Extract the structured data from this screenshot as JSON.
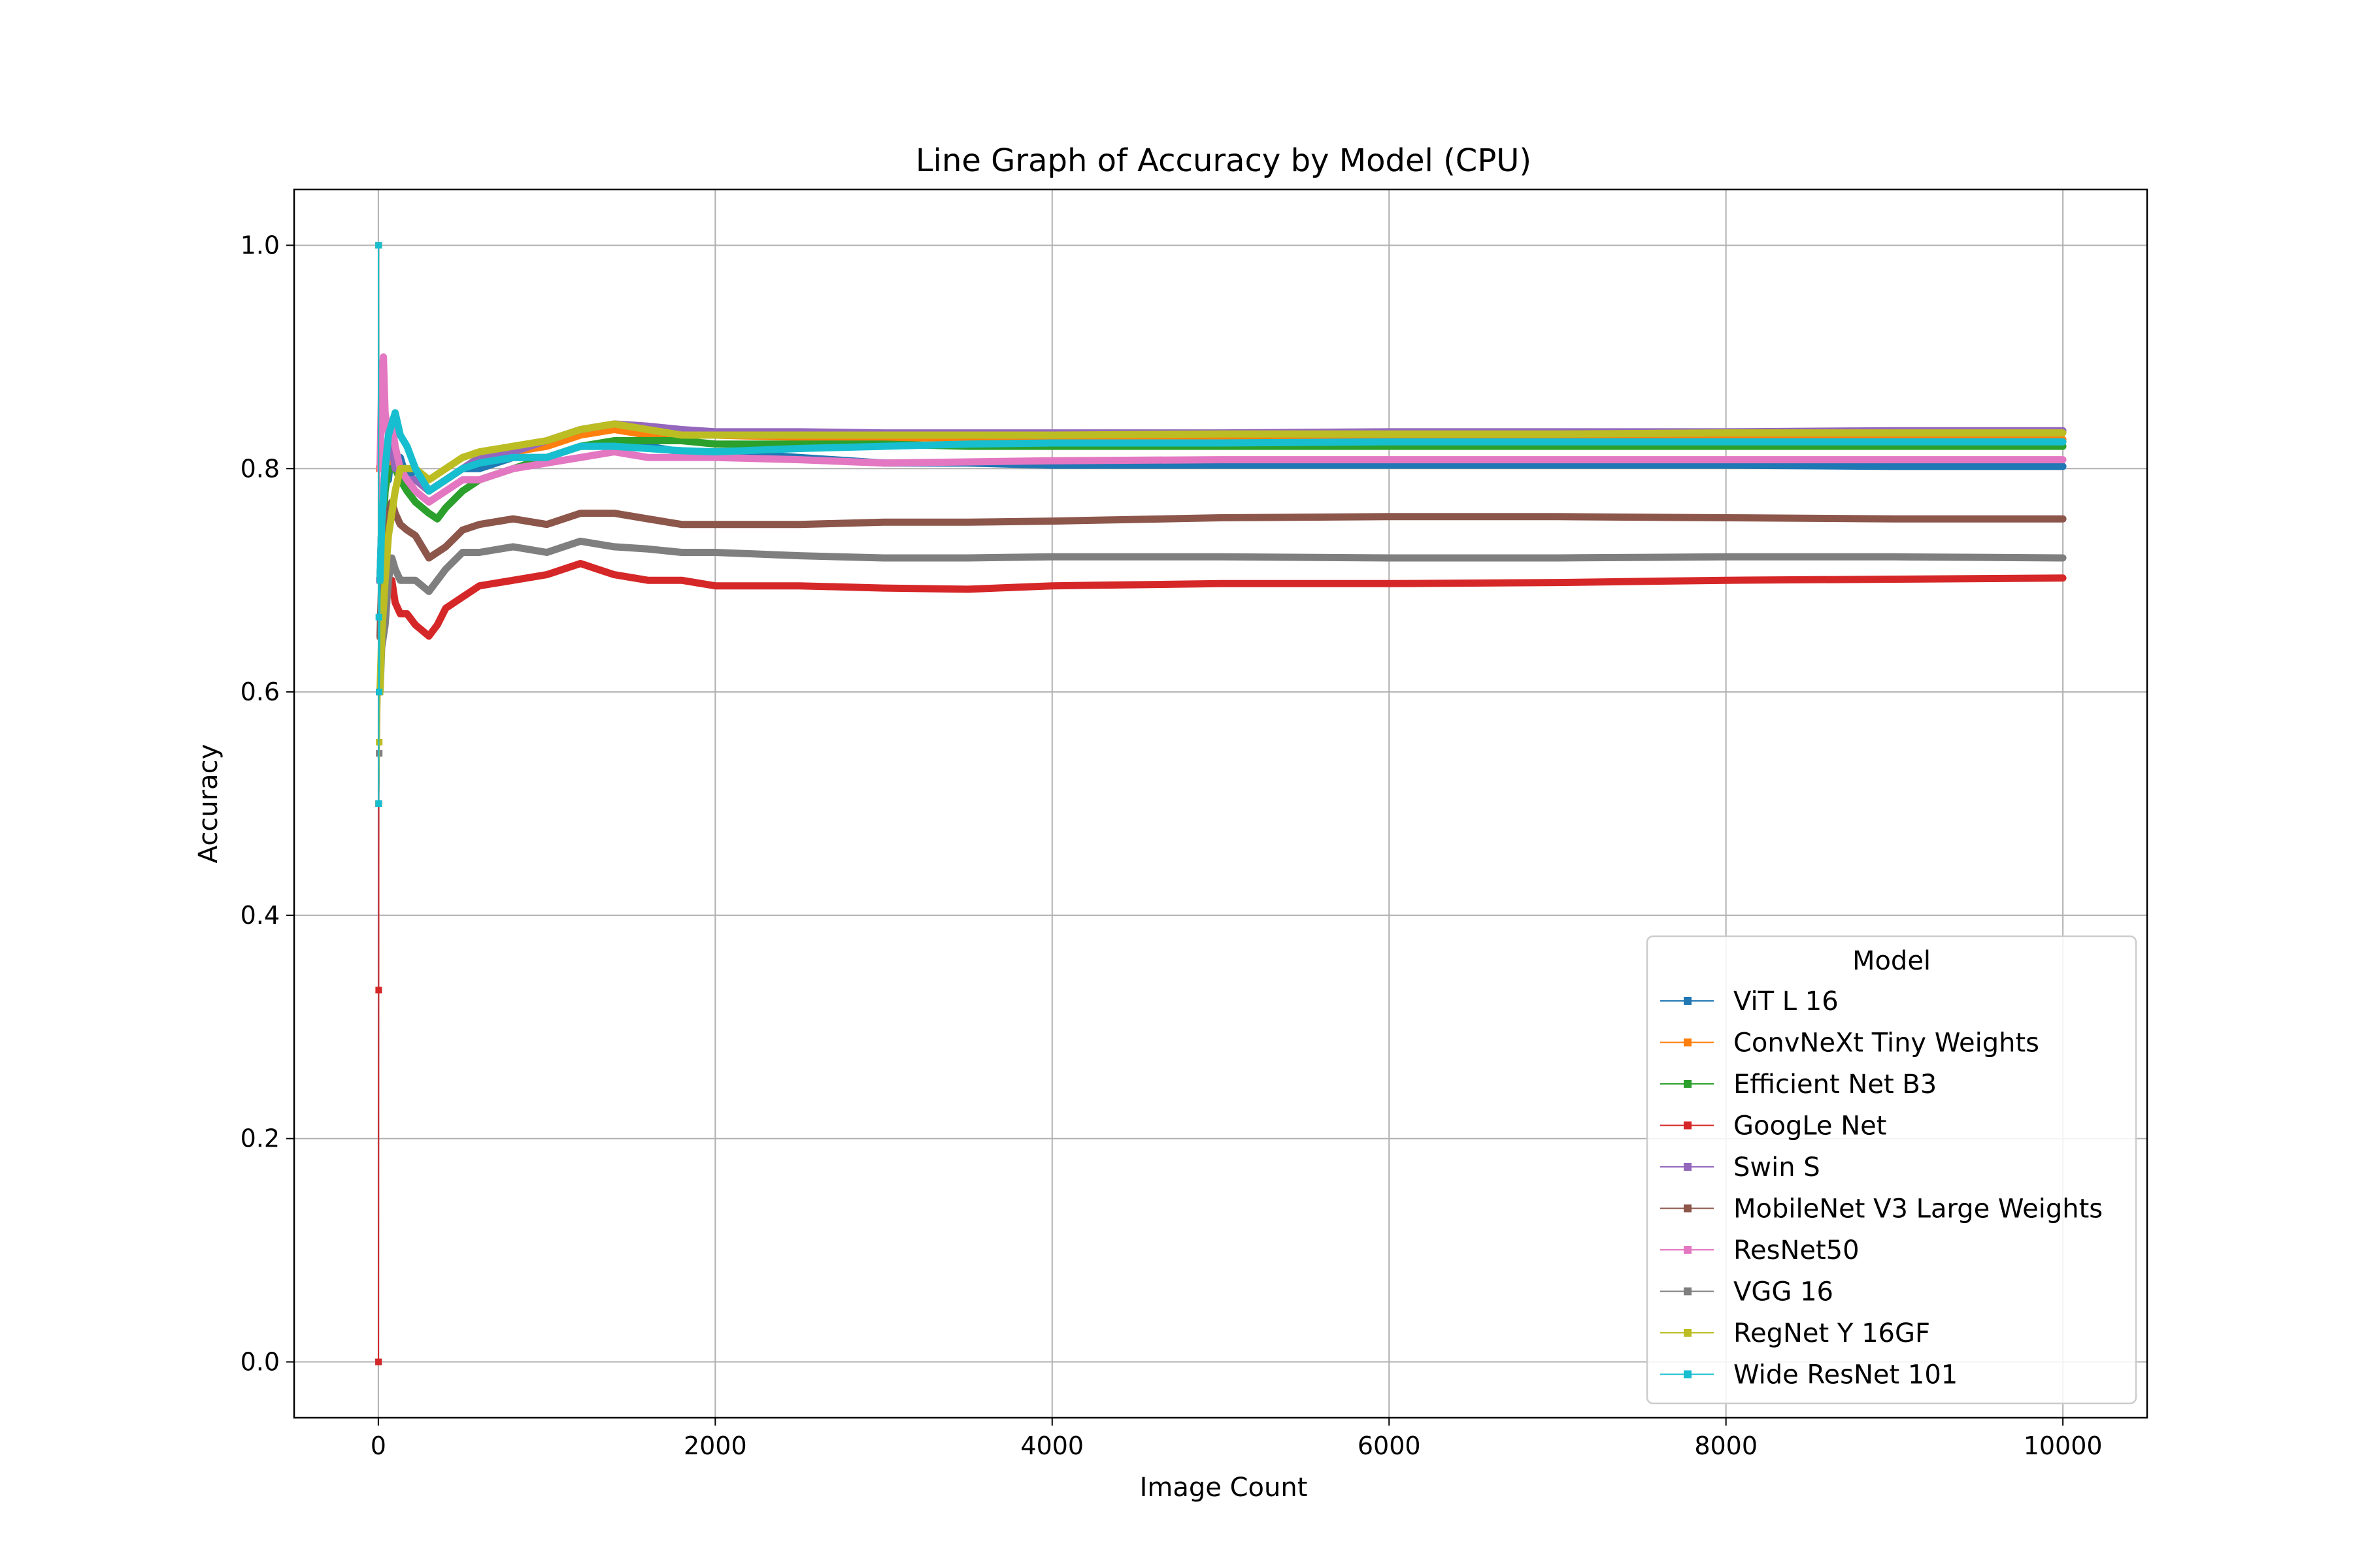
{
  "chart_data": {
    "type": "line",
    "title": "Line Graph of Accuracy by Model (CPU)",
    "xlabel": "Image Count",
    "ylabel": "Accuracy",
    "xlim": [
      -500,
      10500
    ],
    "ylim": [
      -0.05,
      1.05
    ],
    "xticks": [
      0,
      2000,
      4000,
      6000,
      8000,
      10000
    ],
    "yticks": [
      0.0,
      0.2,
      0.4,
      0.6,
      0.8,
      1.0
    ],
    "xtick_labels": [
      "0",
      "2000",
      "4000",
      "6000",
      "8000",
      "10000"
    ],
    "ytick_labels": [
      "0.0",
      "0.2",
      "0.4",
      "0.6",
      "0.8",
      "1.0"
    ],
    "grid": true,
    "legend": {
      "title": "Model",
      "placement": "lower-right"
    },
    "series": [
      {
        "name": "ViT L 16",
        "color": "#1f77b4",
        "x": [
          1,
          2,
          5,
          10,
          20,
          40,
          60,
          80,
          100,
          130,
          170,
          220,
          300,
          400,
          500,
          600,
          800,
          1000,
          1200,
          1400,
          1600,
          1800,
          2000,
          2500,
          3000,
          3500,
          4000,
          5000,
          6000,
          7000,
          8000,
          9000,
          10000
        ],
        "y": [
          0.0,
          1.0,
          0.6,
          0.7,
          0.75,
          0.8,
          0.79,
          0.82,
          0.8,
          0.81,
          0.79,
          0.8,
          0.78,
          0.79,
          0.8,
          0.8,
          0.81,
          0.81,
          0.82,
          0.82,
          0.82,
          0.815,
          0.815,
          0.81,
          0.805,
          0.805,
          0.803,
          0.803,
          0.803,
          0.803,
          0.803,
          0.802,
          0.802
        ]
      },
      {
        "name": "ConvNeXt Tiny Weights",
        "color": "#ff7f0e",
        "x": [
          1,
          2,
          5,
          10,
          20,
          40,
          60,
          80,
          100,
          130,
          170,
          220,
          300,
          400,
          500,
          600,
          800,
          1000,
          1200,
          1400,
          1600,
          1800,
          2000,
          2500,
          3000,
          3500,
          4000,
          5000,
          6000,
          7000,
          8000,
          9000,
          10000
        ],
        "y": [
          1.0,
          0.5,
          0.8,
          0.7,
          0.75,
          0.78,
          0.8,
          0.82,
          0.81,
          0.8,
          0.79,
          0.79,
          0.78,
          0.79,
          0.8,
          0.81,
          0.815,
          0.82,
          0.83,
          0.835,
          0.83,
          0.83,
          0.83,
          0.828,
          0.828,
          0.827,
          0.826,
          0.827,
          0.827,
          0.826,
          0.826,
          0.826,
          0.826
        ]
      },
      {
        "name": "Efficient Net B3",
        "color": "#2ca02c",
        "x": [
          1,
          2,
          5,
          10,
          20,
          40,
          60,
          80,
          100,
          130,
          170,
          220,
          300,
          350,
          400,
          500,
          600,
          800,
          1000,
          1200,
          1400,
          1600,
          1800,
          2000,
          2500,
          3000,
          3500,
          4000,
          5000,
          6000,
          7000,
          8000,
          9000,
          10000
        ],
        "y": [
          1.0,
          0.5,
          0.6,
          0.7,
          0.72,
          0.78,
          0.8,
          0.8,
          0.8,
          0.79,
          0.78,
          0.77,
          0.76,
          0.755,
          0.765,
          0.78,
          0.79,
          0.8,
          0.81,
          0.82,
          0.825,
          0.825,
          0.825,
          0.822,
          0.822,
          0.822,
          0.82,
          0.82,
          0.82,
          0.82,
          0.82,
          0.82,
          0.82,
          0.82
        ]
      },
      {
        "name": "GoogLe Net",
        "color": "#d62728",
        "x": [
          1,
          2,
          3,
          5,
          10,
          20,
          40,
          60,
          80,
          100,
          130,
          170,
          220,
          300,
          350,
          400,
          500,
          600,
          800,
          1000,
          1200,
          1300,
          1400,
          1600,
          1800,
          2000,
          2500,
          3000,
          3500,
          4000,
          5000,
          6000,
          7000,
          8000,
          9000,
          10000
        ],
        "y": [
          0.0,
          0.333,
          0.5,
          0.6,
          0.65,
          0.66,
          0.7,
          0.69,
          0.7,
          0.68,
          0.67,
          0.67,
          0.66,
          0.65,
          0.66,
          0.675,
          0.685,
          0.695,
          0.7,
          0.705,
          0.715,
          0.71,
          0.705,
          0.7,
          0.7,
          0.695,
          0.695,
          0.693,
          0.692,
          0.695,
          0.697,
          0.697,
          0.698,
          0.7,
          0.701,
          0.702
        ]
      },
      {
        "name": "Swin S",
        "color": "#9467bd",
        "x": [
          1,
          2,
          5,
          10,
          20,
          40,
          60,
          80,
          100,
          130,
          170,
          220,
          300,
          400,
          500,
          600,
          800,
          1000,
          1200,
          1400,
          1600,
          1800,
          2000,
          2500,
          3000,
          3500,
          4000,
          5000,
          6000,
          7000,
          8000,
          9000,
          10000
        ],
        "y": [
          1.0,
          0.5,
          0.6,
          0.7,
          0.75,
          0.8,
          0.82,
          0.82,
          0.8,
          0.8,
          0.79,
          0.79,
          0.78,
          0.79,
          0.8,
          0.81,
          0.815,
          0.825,
          0.835,
          0.84,
          0.838,
          0.835,
          0.833,
          0.833,
          0.832,
          0.832,
          0.832,
          0.832,
          0.833,
          0.833,
          0.833,
          0.834,
          0.834
        ]
      },
      {
        "name": "MobileNet V3 Large Weights",
        "color": "#8c564b",
        "x": [
          1,
          2,
          5,
          10,
          20,
          40,
          60,
          80,
          100,
          130,
          170,
          220,
          300,
          400,
          500,
          600,
          800,
          1000,
          1200,
          1400,
          1600,
          1800,
          2000,
          2500,
          3000,
          3500,
          4000,
          5000,
          6000,
          7000,
          8000,
          9000,
          10000
        ],
        "y": [
          1.0,
          0.5,
          0.6,
          0.65,
          0.7,
          0.74,
          0.76,
          0.77,
          0.76,
          0.75,
          0.745,
          0.74,
          0.72,
          0.73,
          0.745,
          0.75,
          0.755,
          0.75,
          0.76,
          0.76,
          0.755,
          0.75,
          0.75,
          0.75,
          0.752,
          0.752,
          0.753,
          0.756,
          0.757,
          0.757,
          0.756,
          0.755,
          0.755
        ]
      },
      {
        "name": "ResNet50",
        "color": "#e377c2",
        "x": [
          1,
          2,
          5,
          10,
          20,
          30,
          40,
          60,
          80,
          100,
          130,
          170,
          220,
          300,
          400,
          500,
          600,
          800,
          1000,
          1200,
          1400,
          1600,
          1800,
          2000,
          2500,
          3000,
          3500,
          4000,
          5000,
          6000,
          7000,
          8000,
          9000,
          10000
        ],
        "y": [
          1.0,
          0.5,
          0.7,
          0.8,
          0.88,
          0.9,
          0.85,
          0.83,
          0.84,
          0.82,
          0.8,
          0.79,
          0.78,
          0.77,
          0.78,
          0.79,
          0.79,
          0.8,
          0.805,
          0.81,
          0.815,
          0.81,
          0.81,
          0.81,
          0.808,
          0.805,
          0.806,
          0.807,
          0.808,
          0.808,
          0.808,
          0.808,
          0.808,
          0.808
        ]
      },
      {
        "name": "VGG 16",
        "color": "#7f7f7f",
        "x": [
          1,
          2,
          5,
          10,
          20,
          40,
          60,
          80,
          100,
          130,
          170,
          220,
          300,
          400,
          500,
          600,
          800,
          1000,
          1200,
          1400,
          1600,
          1800,
          2000,
          2500,
          3000,
          3500,
          4000,
          5000,
          6000,
          7000,
          8000,
          9000,
          10000
        ],
        "y": [
          1.0,
          0.5,
          0.545,
          0.6,
          0.64,
          0.66,
          0.7,
          0.72,
          0.71,
          0.7,
          0.7,
          0.7,
          0.69,
          0.71,
          0.725,
          0.725,
          0.73,
          0.725,
          0.735,
          0.73,
          0.728,
          0.725,
          0.725,
          0.722,
          0.72,
          0.72,
          0.721,
          0.721,
          0.72,
          0.72,
          0.721,
          0.721,
          0.72
        ]
      },
      {
        "name": "RegNet Y 16GF",
        "color": "#bcbd22",
        "x": [
          1,
          2,
          5,
          10,
          20,
          40,
          60,
          80,
          100,
          130,
          170,
          220,
          300,
          400,
          500,
          600,
          800,
          1000,
          1200,
          1400,
          1600,
          1800,
          2000,
          2500,
          3000,
          3500,
          4000,
          5000,
          6000,
          7000,
          8000,
          9000,
          10000
        ],
        "y": [
          1.0,
          0.5,
          0.555,
          0.6,
          0.65,
          0.7,
          0.74,
          0.76,
          0.78,
          0.8,
          0.8,
          0.8,
          0.79,
          0.8,
          0.81,
          0.815,
          0.82,
          0.825,
          0.835,
          0.84,
          0.835,
          0.83,
          0.83,
          0.83,
          0.83,
          0.83,
          0.83,
          0.831,
          0.831,
          0.831,
          0.832,
          0.832,
          0.832
        ]
      },
      {
        "name": "Wide ResNet 101",
        "color": "#17becf",
        "x": [
          1,
          2,
          3,
          5,
          10,
          20,
          40,
          60,
          80,
          100,
          130,
          170,
          220,
          300,
          400,
          500,
          600,
          800,
          1000,
          1200,
          1400,
          1600,
          1800,
          2000,
          2500,
          3000,
          3500,
          4000,
          5000,
          6000,
          7000,
          8000,
          9000,
          10000
        ],
        "y": [
          1.0,
          0.5,
          0.667,
          0.6,
          0.7,
          0.75,
          0.8,
          0.83,
          0.84,
          0.85,
          0.83,
          0.82,
          0.8,
          0.78,
          0.79,
          0.8,
          0.805,
          0.81,
          0.81,
          0.82,
          0.82,
          0.818,
          0.816,
          0.815,
          0.818,
          0.82,
          0.822,
          0.823,
          0.823,
          0.824,
          0.824,
          0.824,
          0.824,
          0.824
        ]
      }
    ]
  }
}
